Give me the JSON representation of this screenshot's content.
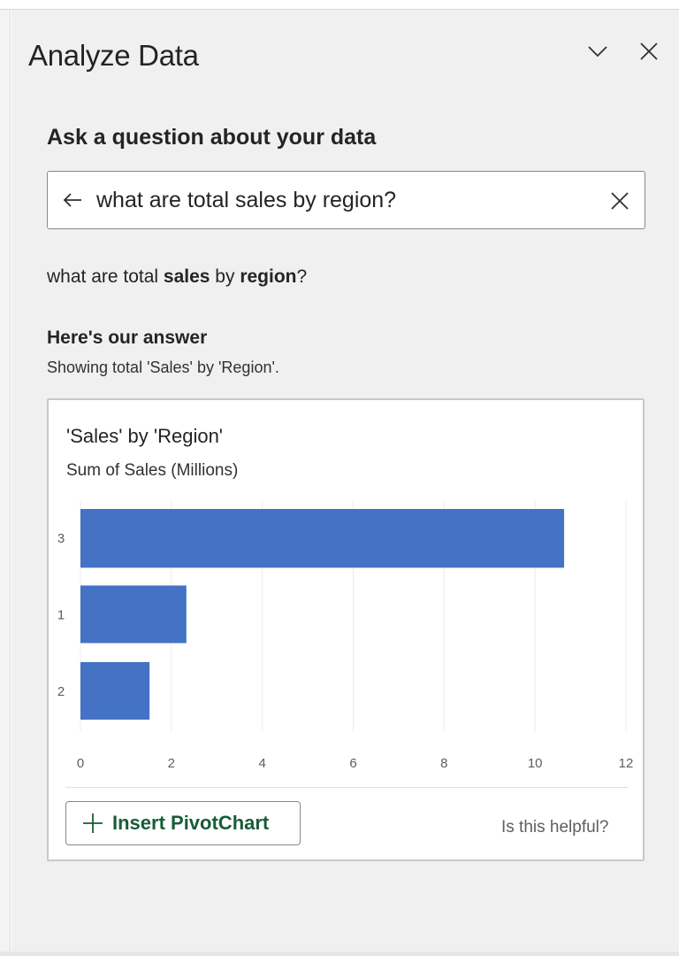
{
  "panel": {
    "title": "Analyze Data",
    "collapse_icon": "chevron-down-icon",
    "close_icon": "close-icon"
  },
  "ask": {
    "heading": "Ask a question about your data",
    "query_value": "what are total sales by region?",
    "back_icon": "arrow-left-icon",
    "clear_icon": "close-icon"
  },
  "interpreted": {
    "parts": [
      {
        "text": "what are total ",
        "bold": false
      },
      {
        "text": "sales",
        "bold": true
      },
      {
        "text": " by ",
        "bold": false
      },
      {
        "text": "region",
        "bold": true
      },
      {
        "text": "?",
        "bold": false
      }
    ]
  },
  "answer": {
    "heading": "Here's our answer",
    "subtitle": "Showing total 'Sales' by 'Region'."
  },
  "card": {
    "insert_label": "Insert PivotChart",
    "insert_icon": "plus-icon",
    "helpful_label": "Is this helpful?"
  },
  "chart_data": {
    "type": "bar",
    "orientation": "horizontal",
    "title": "'Sales' by 'Region'",
    "subtitle": "Sum of Sales (Millions)",
    "categories": [
      "3",
      "1",
      "2"
    ],
    "values": [
      10.64,
      2.33,
      1.52
    ],
    "xlim": [
      0,
      12
    ],
    "xticks": [
      "0",
      "2",
      "4",
      "6",
      "8",
      "10",
      "12"
    ],
    "grid": true,
    "bar_color": "#4472c4"
  }
}
